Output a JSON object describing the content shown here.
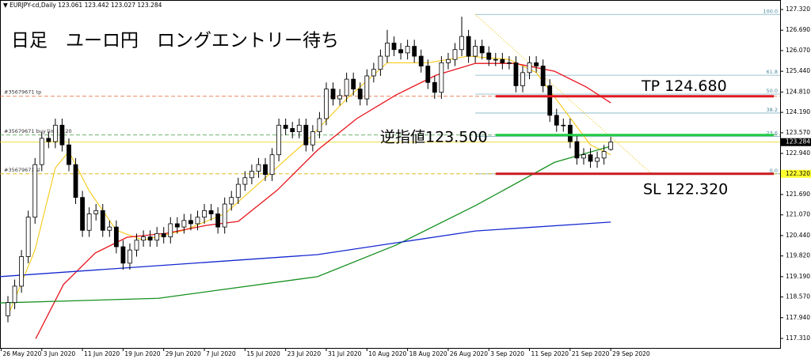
{
  "chart_data": {
    "type": "candlestick",
    "header": "▼ EURJPY-cd,Daily  123.061 123.442 123.027 123.284",
    "title": "日足　ユーロ円　ロングエントリー待ち",
    "open": [
      118.0,
      118.4,
      118.9,
      119.8,
      121.0,
      122.6,
      123.4,
      123.3,
      123.8,
      123.2,
      122.6,
      121.6,
      120.6,
      121.1,
      121.2,
      120.6,
      120.7,
      120.1,
      119.6,
      120.0,
      120.3,
      120.4,
      120.3,
      120.5,
      120.4,
      120.8,
      120.7,
      120.9,
      120.8,
      121.0,
      121.2,
      121.1,
      120.7,
      121.4,
      121.6,
      122.0,
      122.2,
      122.4,
      122.6,
      122.3,
      122.9,
      123.8,
      123.7,
      123.6,
      123.8,
      123.2,
      123.6,
      124.0,
      124.9,
      124.6,
      124.7,
      125.2,
      124.9,
      124.6,
      125.3,
      125.5,
      125.9,
      126.3,
      126.1,
      126.0,
      126.2,
      125.9,
      125.6,
      125.1,
      124.8,
      125.7,
      125.8,
      126.1,
      126.5,
      125.9,
      126.2,
      126.0,
      125.8,
      125.8,
      125.7,
      125.7,
      125.0,
      125.4,
      125.7,
      125.6,
      125.0,
      124.1,
      123.8,
      123.8,
      123.3,
      122.8,
      122.9,
      122.7,
      122.8,
      123.061
    ],
    "high": [
      118.6,
      119.1,
      120.0,
      121.2,
      122.8,
      123.6,
      123.6,
      124.0,
      124.0,
      123.4,
      122.8,
      121.8,
      121.3,
      121.4,
      121.4,
      120.9,
      120.9,
      120.3,
      120.2,
      120.5,
      120.6,
      120.6,
      120.7,
      120.7,
      121.0,
      121.0,
      121.1,
      121.1,
      121.2,
      121.4,
      121.4,
      121.3,
      121.6,
      121.8,
      122.2,
      122.4,
      122.6,
      122.8,
      122.8,
      123.1,
      124.0,
      124.0,
      123.9,
      124.0,
      124.0,
      123.8,
      124.2,
      125.1,
      125.1,
      124.9,
      125.4,
      125.4,
      125.1,
      125.5,
      125.7,
      126.1,
      126.7,
      126.5,
      126.3,
      126.4,
      126.4,
      126.1,
      125.8,
      125.3,
      125.9,
      126.0,
      126.3,
      127.1,
      126.7,
      126.4,
      126.4,
      126.2,
      126.0,
      126.0,
      125.9,
      125.9,
      125.6,
      125.9,
      125.9,
      125.8,
      125.2,
      124.3,
      124.0,
      124.0,
      123.5,
      123.1,
      123.1,
      123.0,
      123.2,
      123.442
    ],
    "low": [
      117.8,
      118.2,
      118.7,
      119.6,
      120.8,
      122.4,
      123.1,
      123.1,
      123.0,
      122.4,
      121.4,
      120.4,
      120.4,
      120.9,
      120.4,
      120.4,
      119.9,
      119.4,
      119.4,
      119.8,
      120.1,
      120.1,
      120.1,
      120.2,
      120.2,
      120.5,
      120.5,
      120.6,
      120.6,
      120.8,
      120.9,
      120.5,
      120.5,
      121.2,
      121.4,
      121.8,
      122.0,
      122.2,
      122.1,
      122.1,
      122.7,
      123.5,
      123.4,
      123.4,
      123.0,
      123.0,
      123.4,
      123.8,
      124.4,
      124.4,
      124.5,
      124.7,
      124.4,
      124.4,
      125.1,
      125.3,
      125.7,
      125.9,
      125.8,
      125.8,
      125.7,
      125.4,
      124.9,
      124.6,
      124.6,
      125.5,
      125.6,
      125.9,
      125.7,
      125.7,
      125.8,
      125.6,
      125.6,
      125.5,
      125.5,
      124.8,
      124.8,
      125.2,
      125.4,
      124.8,
      123.9,
      123.6,
      123.6,
      123.1,
      122.6,
      122.6,
      122.5,
      122.5,
      122.6,
      123.027
    ],
    "close": [
      118.4,
      118.9,
      119.8,
      121.0,
      122.6,
      123.4,
      123.3,
      123.8,
      123.2,
      122.6,
      121.6,
      120.6,
      121.1,
      121.2,
      120.6,
      120.7,
      120.1,
      119.6,
      120.0,
      120.3,
      120.4,
      120.3,
      120.5,
      120.4,
      120.8,
      120.7,
      120.9,
      120.8,
      121.0,
      121.2,
      121.1,
      120.7,
      121.4,
      121.6,
      122.0,
      122.2,
      122.4,
      122.6,
      122.3,
      122.9,
      123.8,
      123.7,
      123.6,
      123.8,
      123.2,
      123.6,
      124.0,
      124.9,
      124.6,
      124.7,
      125.2,
      124.9,
      124.6,
      125.3,
      125.5,
      125.9,
      126.3,
      126.1,
      126.0,
      126.2,
      125.9,
      125.6,
      125.1,
      124.8,
      125.7,
      125.8,
      126.1,
      126.5,
      125.9,
      126.2,
      126.0,
      125.8,
      125.8,
      125.7,
      125.7,
      125.0,
      125.4,
      125.7,
      125.6,
      125.0,
      124.1,
      123.8,
      123.8,
      123.3,
      122.8,
      122.9,
      122.7,
      122.8,
      123.0,
      123.284
    ],
    "lines": [
      {
        "color": "#f5c400",
        "width": 1,
        "x": [
          0,
          4,
          7,
          9,
          12,
          16,
          20,
          26,
          32,
          38,
          44,
          50,
          56,
          62,
          68,
          74,
          78,
          82,
          86,
          89
        ],
        "values": [
          118.0,
          120.0,
          122.5,
          123.0,
          121.8,
          120.6,
          120.3,
          120.6,
          121.1,
          122.2,
          123.3,
          124.6,
          125.7,
          125.7,
          125.9,
          125.8,
          125.4,
          124.3,
          123.2,
          122.9
        ]
      },
      {
        "color": "#e8141c",
        "width": 1.3,
        "x": [
          4.1,
          8.2,
          12.9,
          17.6,
          23.4,
          29.3,
          34.0,
          39.8,
          45.7,
          51.5,
          57.3,
          63.2,
          69.0,
          74.9,
          80.7,
          85.4,
          89
        ],
        "values": [
          117.3,
          118.95,
          119.91,
          120.39,
          120.51,
          120.75,
          120.87,
          121.83,
          123.04,
          124.0,
          124.72,
          125.32,
          125.68,
          125.68,
          125.44,
          124.96,
          124.48
        ]
      },
      {
        "color": "#14901e",
        "width": 1.3,
        "x": [
          -1.2,
          22.2,
          45.7,
          57.3,
          69.0,
          80.7,
          89
        ],
        "values": [
          118.39,
          118.53,
          119.19,
          120.15,
          121.35,
          122.67,
          123.16
        ]
      },
      {
        "color": "#1428d0",
        "width": 1.3,
        "x": [
          -1.2,
          45.7,
          69.0,
          89
        ],
        "values": [
          119.19,
          119.86,
          120.58,
          120.85
        ]
      }
    ],
    "fib": {
      "x": [
        69,
        114
      ],
      "diagonal_x": [
        69,
        95
      ],
      "levels": [
        {
          "price": 127.17,
          "label": "100.0"
        },
        {
          "price": 125.32,
          "label": "61.8"
        },
        {
          "price": 124.745,
          "label": "50.0"
        },
        {
          "price": 124.17,
          "label": "38.2"
        },
        {
          "price": 123.46,
          "label": "23.6"
        },
        {
          "price": 122.32,
          "label": "0.0"
        }
      ]
    },
    "orders": [
      {
        "price": 124.68,
        "label": "#35679671 tp",
        "color": "#e8602c",
        "annotation": "TP 124.680",
        "line_color": "#e01820"
      },
      {
        "price": 123.5,
        "label": "#35679671 buy limit 0.20",
        "color": "#3a9a3a",
        "annotation": "逆指値123.500",
        "line_color": "#22cc44"
      },
      {
        "price": 122.32,
        "label": "#35679671 sl",
        "color": "#d8b000",
        "annotation": "SL 122.320",
        "line_color": "#c81c20"
      }
    ],
    "order_line_x": 72,
    "bid": {
      "price": 123.284,
      "label": "123.284"
    },
    "sl_tag": {
      "price": 122.32,
      "label": "122.320"
    },
    "xlim": [
      -1.17,
      114.0
    ],
    "ylim": [
      117.02,
      127.61
    ],
    "yticks": [
      {
        "value": 127.32,
        "label": "127.320"
      },
      {
        "value": 126.69,
        "label": "126.690"
      },
      {
        "value": 126.07,
        "label": "126.070"
      },
      {
        "value": 125.44,
        "label": "125.440"
      },
      {
        "value": 124.81,
        "label": "124.810"
      },
      {
        "value": 124.19,
        "label": "124.190"
      },
      {
        "value": 123.57,
        "label": "123.570"
      },
      {
        "value": 122.94,
        "label": "122.940"
      },
      {
        "value": 121.69,
        "label": "121.690"
      },
      {
        "value": 121.07,
        "label": "121.070"
      },
      {
        "value": 120.44,
        "label": "120.440"
      },
      {
        "value": 119.82,
        "label": "119.820"
      },
      {
        "value": 119.19,
        "label": "119.190"
      },
      {
        "value": 118.57,
        "label": "118.570"
      },
      {
        "value": 117.94,
        "label": "117.940"
      },
      {
        "value": 117.31,
        "label": "117.310"
      }
    ],
    "xticks": [
      {
        "value": -1,
        "label": "26 May 2020"
      },
      {
        "value": 5,
        "label": "3 Jun 2020"
      },
      {
        "value": 11,
        "label": "11 Jun 2020"
      },
      {
        "value": 17,
        "label": "19 Jun 2020"
      },
      {
        "value": 23,
        "label": "29 Jun 2020"
      },
      {
        "value": 29,
        "label": "7 Jul 2020"
      },
      {
        "value": 35,
        "label": "15 Jul 2020"
      },
      {
        "value": 41,
        "label": "23 Jul 2020"
      },
      {
        "value": 47,
        "label": "31 Jul 2020"
      },
      {
        "value": 53,
        "label": "10 Aug 2020"
      },
      {
        "value": 59,
        "label": "18 Aug 2020"
      },
      {
        "value": 65,
        "label": "26 Aug 2020"
      },
      {
        "value": 71,
        "label": "3 Sep 2020"
      },
      {
        "value": 77,
        "label": "11 Sep 2020"
      },
      {
        "value": 83,
        "label": "21 Sep 2020"
      },
      {
        "value": 89,
        "label": "29 Sep 2020"
      }
    ]
  }
}
